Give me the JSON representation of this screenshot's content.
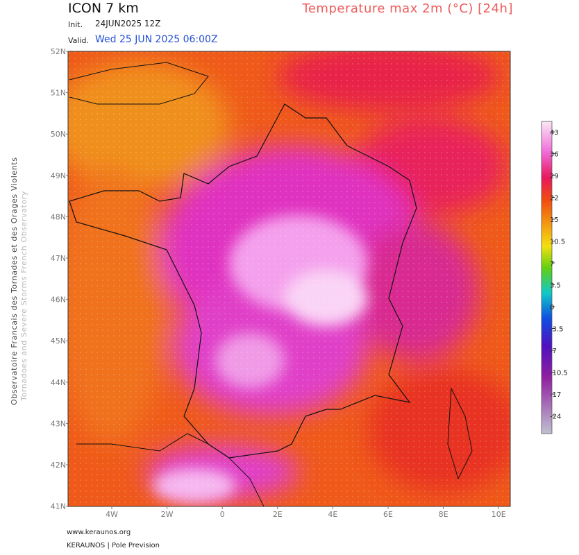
{
  "header": {
    "model": "ICON 7 km",
    "title": "Temperature max 2m (°C) [24h]",
    "init_label": "Init.",
    "init_value": "24JUN2025 12Z",
    "valid_label": "Valid.",
    "valid_value": "Wed 25 JUN 2025 06:00Z"
  },
  "side_text": [
    "Observatoire Francais des Tornades et des Orages Violents",
    "Tornadoes and Severe Storms French Observatory"
  ],
  "map": {
    "lat_labels": [
      "52N",
      "51N",
      "50N",
      "49N",
      "48N",
      "47N",
      "46N",
      "45N",
      "44N",
      "43N",
      "42N",
      "41N"
    ],
    "lon_labels": [
      "4W",
      "2W",
      "0",
      "2E",
      "4E",
      "6E",
      "8E",
      "10E"
    ]
  },
  "colorbar": {
    "labels": [
      "43",
      "36",
      "29",
      "22",
      "15",
      "10.5",
      "7",
      "3.5",
      "0",
      "-3.5",
      "-7",
      "-10.5",
      "-17",
      "-24"
    ]
  },
  "footer": [
    "www.keraunos.org",
    "KERAUNOS | Pole Prevision"
  ]
}
